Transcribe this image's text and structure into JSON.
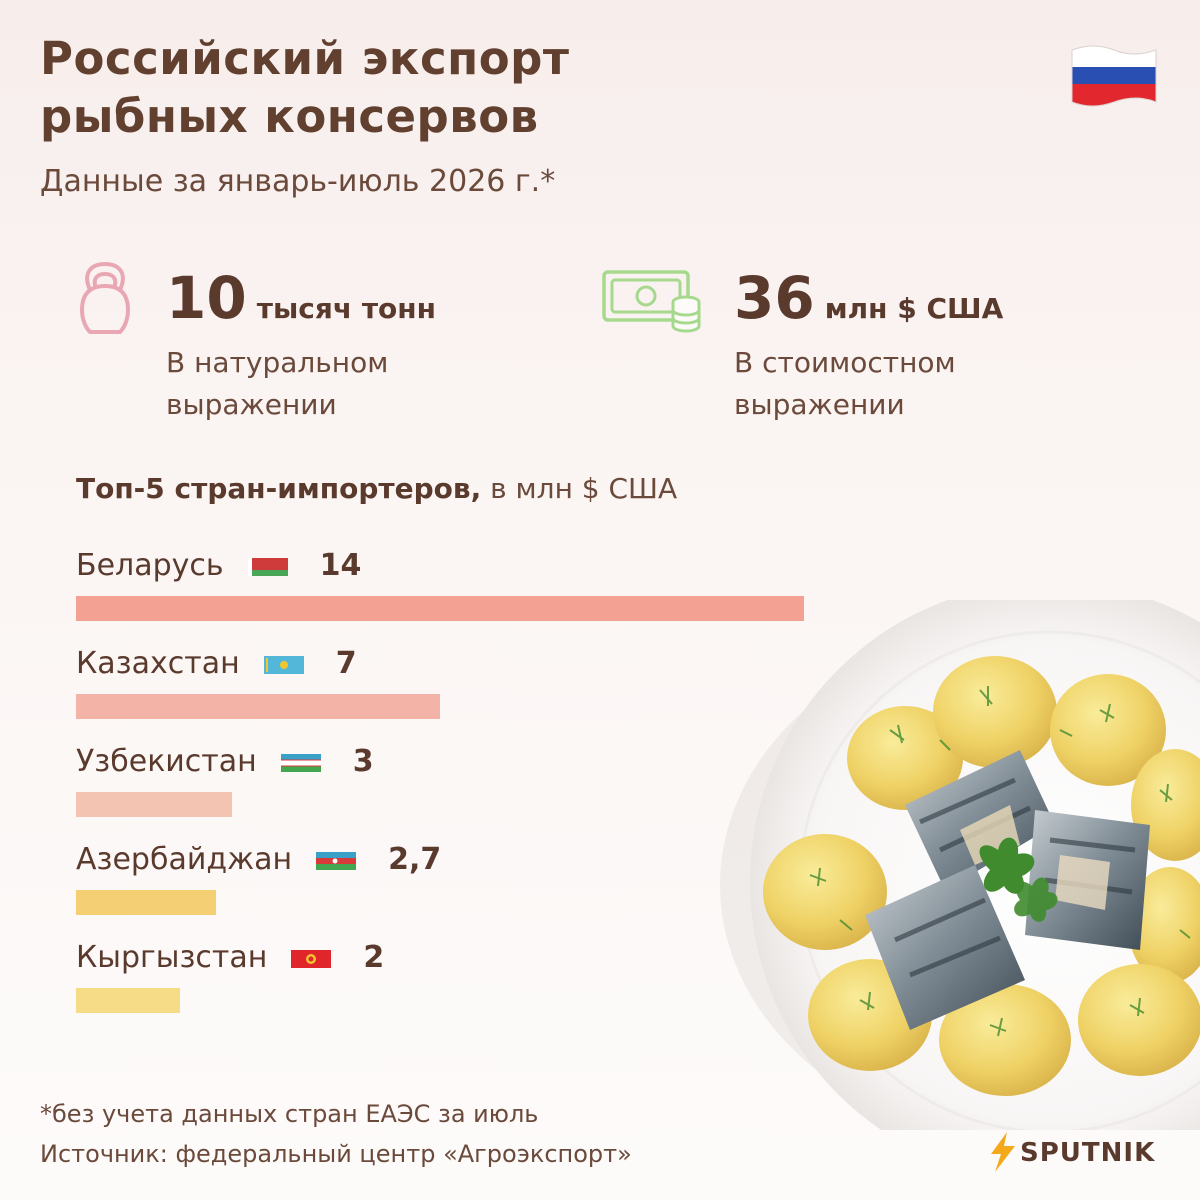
{
  "header": {
    "title": "Российский экспорт\nрыбных консервов",
    "subtitle": "Данные за январь-июль 2026 г.*"
  },
  "stats": [
    {
      "value": "10",
      "unit": "тысяч тонн",
      "desc": "В натуральном\nвыражении",
      "icon": "kettlebell-icon"
    },
    {
      "value": "36",
      "unit": "млн $ США",
      "desc": "В стоимостном\nвыражении",
      "icon": "money-coins-icon"
    }
  ],
  "chart_data": {
    "type": "bar",
    "title": "Топ-5 стран-импортеров,",
    "unit_label": "в млн $ США",
    "categories": [
      "Беларусь",
      "Казахстан",
      "Узбекистан",
      "Азербайджан",
      "Кыргызстан"
    ],
    "values": [
      14,
      7,
      3,
      2.7,
      2
    ],
    "value_labels": [
      "14",
      "7",
      "3",
      "2,7",
      "2"
    ],
    "bar_colors": [
      "#f2a193",
      "#f3b3a6",
      "#f3c4b1",
      "#f4cf73",
      "#f6dc86"
    ],
    "flags": [
      "belarus-flag",
      "kazakhstan-flag",
      "uzbekistan-flag",
      "azerbaijan-flag",
      "kyrgyzstan-flag"
    ]
  },
  "footer": {
    "note": "*без учета данных стран ЕАЭС за июль",
    "source": "Источник: федеральный центр «Агроэкспорт»"
  },
  "brand": {
    "name": "SPUTNIK",
    "accent": "#f4a91a"
  }
}
